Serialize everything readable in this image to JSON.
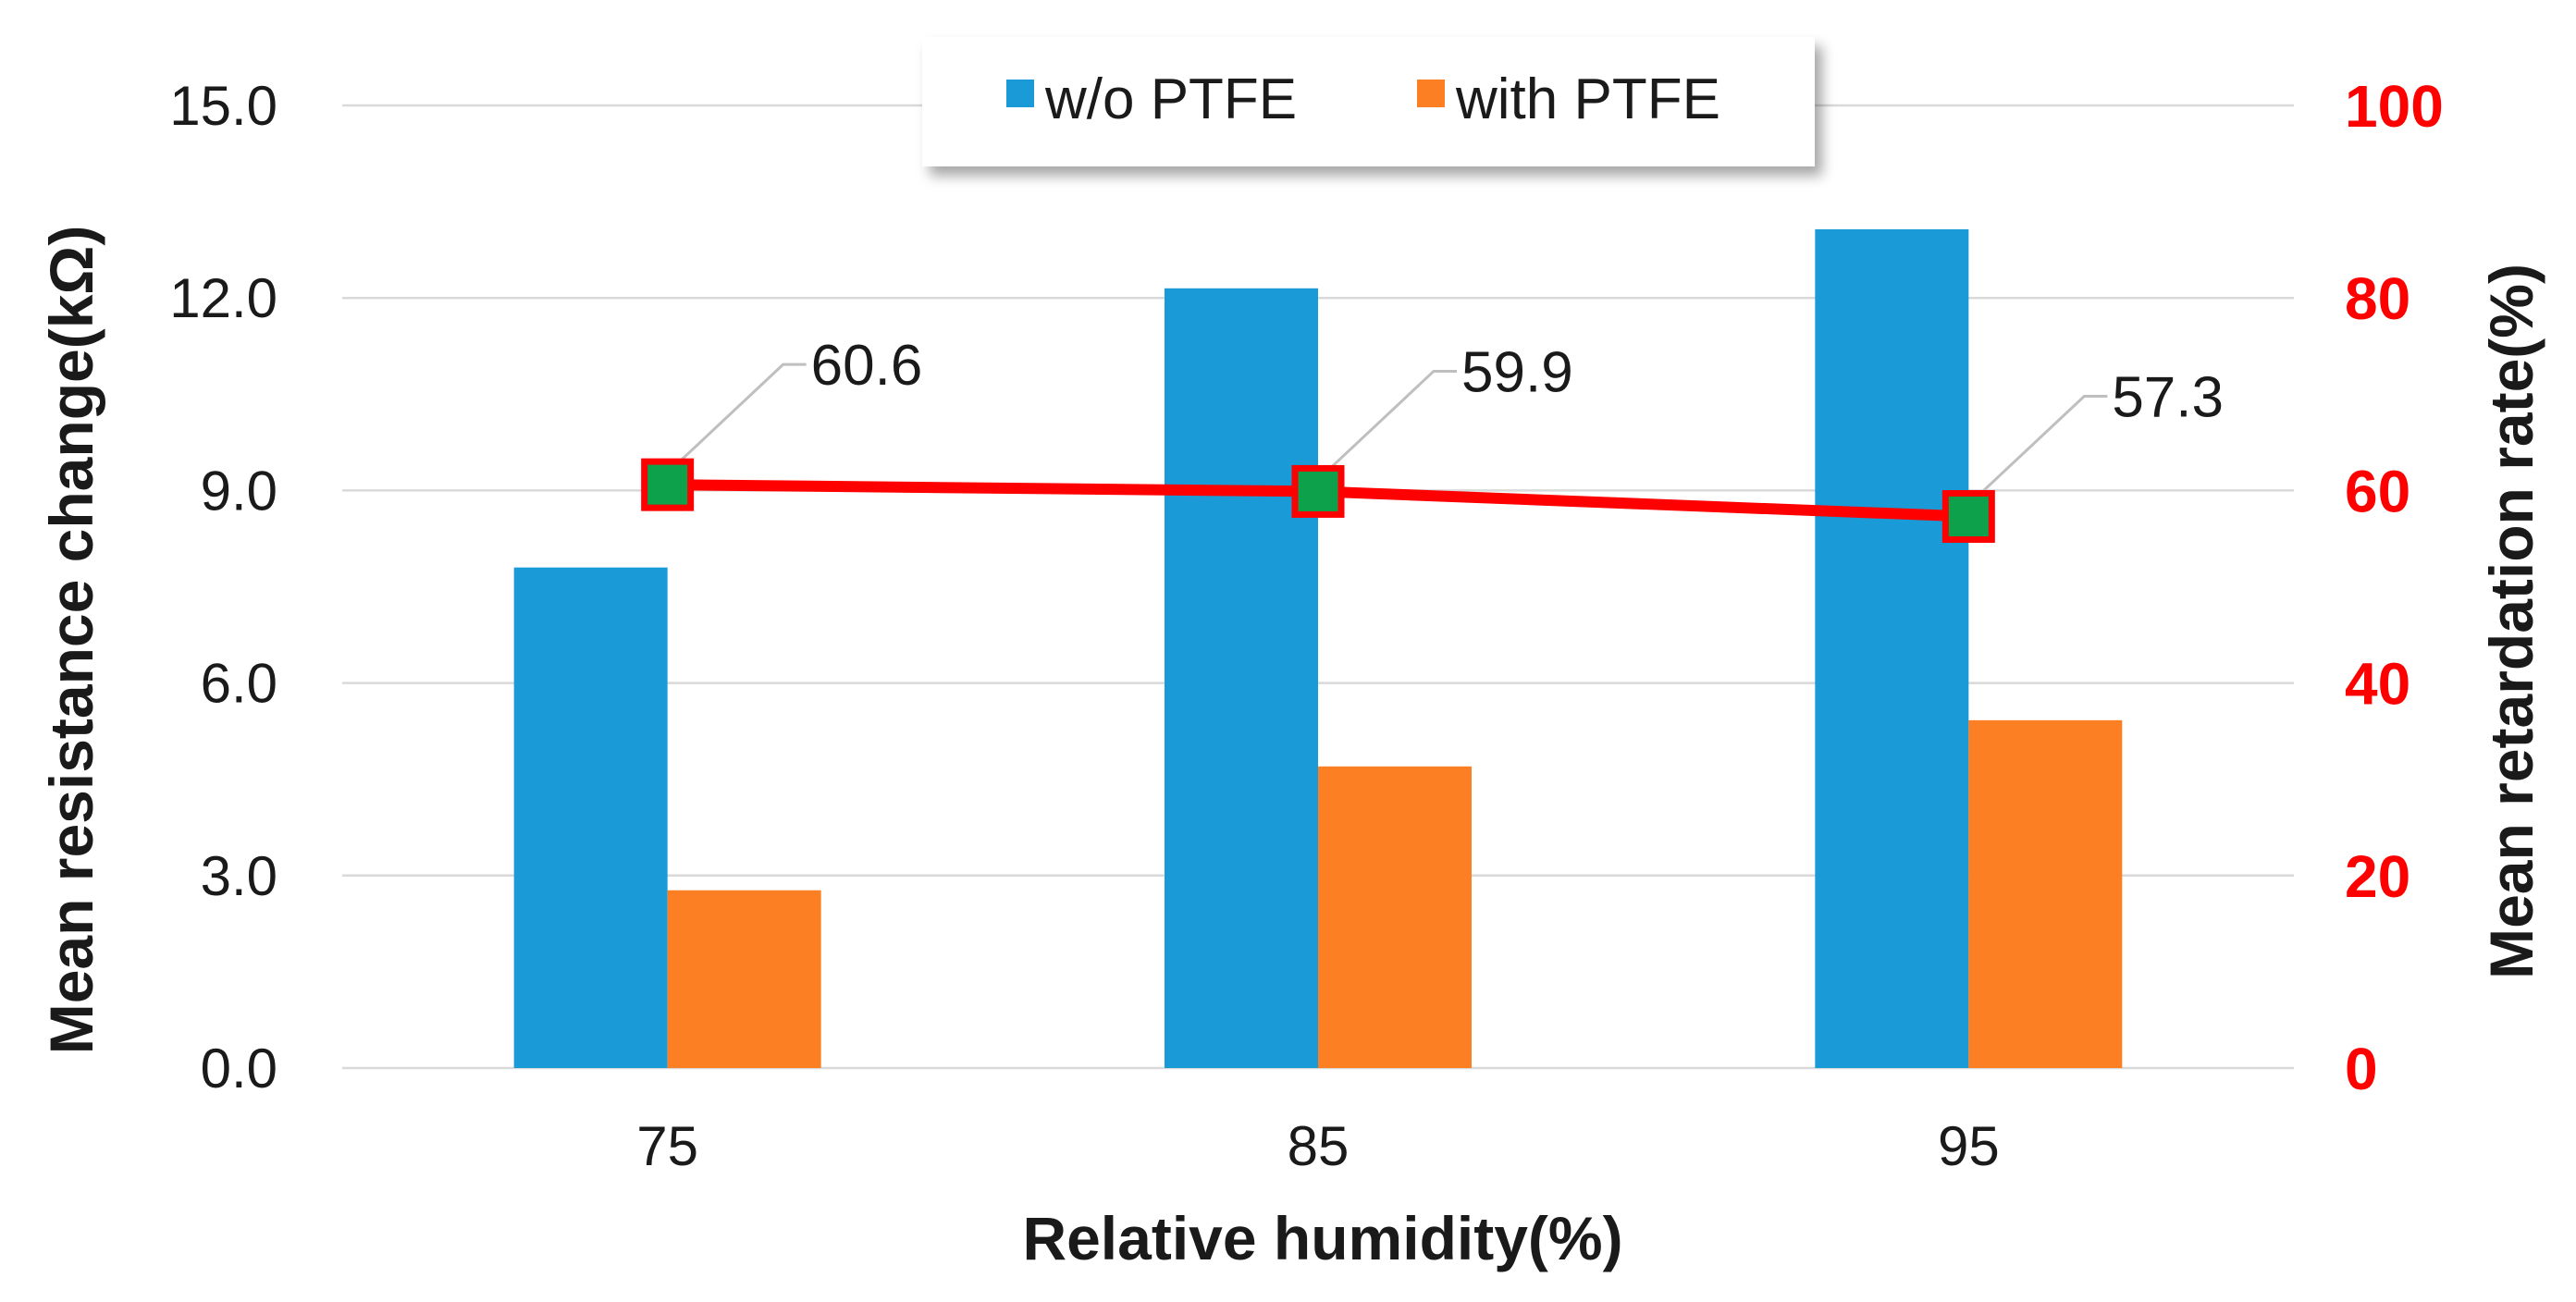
{
  "chart_data": {
    "type": "bar",
    "categories": [
      "75",
      "85",
      "95"
    ],
    "series": [
      {
        "name": "w/o PTFE",
        "axis": "left",
        "kind": "bar",
        "color": "#1a9ad6",
        "values": [
          7.8,
          12.15,
          13.07
        ]
      },
      {
        "name": "with PTFE",
        "axis": "left",
        "kind": "bar",
        "color": "#fc7f24",
        "values": [
          2.77,
          4.7,
          5.42
        ]
      },
      {
        "name": "Mean retardation rate",
        "axis": "right",
        "kind": "line",
        "color": "#ff0000",
        "marker_color": "#0ca14a",
        "values": [
          60.6,
          59.9,
          57.3
        ],
        "labels": [
          "60.6",
          "59.9",
          "57.3"
        ]
      }
    ],
    "xlabel": "Relative humidity(%)",
    "ylabel": "Mean resistance change(kΩ)",
    "y2label": "Mean retardation rate(%)",
    "ylim": [
      0,
      15
    ],
    "y2lim": [
      0,
      100
    ],
    "y_ticks": [
      "0.0",
      "3.0",
      "6.0",
      "9.0",
      "12.0",
      "15.0"
    ],
    "y2_ticks": [
      "0",
      "20",
      "40",
      "60",
      "80",
      "100"
    ],
    "grid": true,
    "legend": {
      "position": "top-center",
      "entries": [
        "w/o PTFE",
        "with PTFE"
      ]
    },
    "right_axis_color": "#ff0000"
  }
}
